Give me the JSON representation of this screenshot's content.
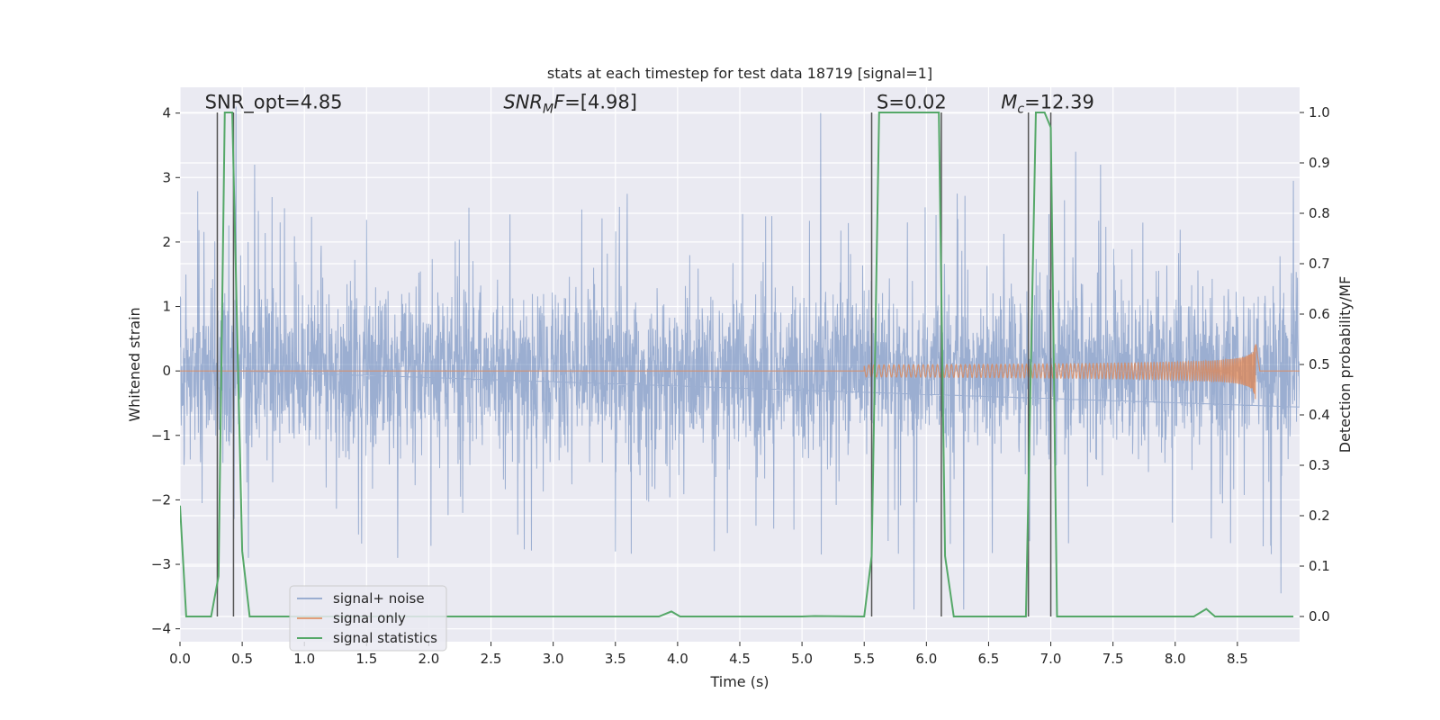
{
  "chart_data": {
    "type": "line",
    "title": "stats at each timestep for test data 18719 [signal=1]",
    "xlabel": "Time (s)",
    "ylabel": "Whitened strain",
    "ylabel_right": "Detection probability/MF",
    "xlim": [
      0,
      9.0
    ],
    "ylim": [
      -4.2,
      4.4
    ],
    "ylim_right": [
      -0.05,
      1.05
    ],
    "xticks": [
      0.0,
      0.5,
      1.0,
      1.5,
      2.0,
      2.5,
      3.0,
      3.5,
      4.0,
      4.5,
      5.0,
      5.5,
      6.0,
      6.5,
      7.0,
      7.5,
      8.0,
      8.5
    ],
    "xtick_labels": [
      "0.0",
      "0.5",
      "1.0",
      "1.5",
      "2.0",
      "2.5",
      "3.0",
      "3.5",
      "4.0",
      "4.5",
      "5.0",
      "5.5",
      "6.0",
      "6.5",
      "7.0",
      "7.5",
      "8.0",
      "8.5"
    ],
    "yticks": [
      -4,
      -3,
      -2,
      -1,
      0,
      1,
      2,
      3,
      4
    ],
    "ytick_labels": [
      "−4",
      "−3",
      "−2",
      "−1",
      "0",
      "1",
      "2",
      "3",
      "4"
    ],
    "yticks_right": [
      0.0,
      0.1,
      0.2,
      0.3,
      0.4,
      0.5,
      0.6,
      0.7,
      0.8,
      0.9,
      1.0
    ],
    "ytick_labels_right": [
      "0.0",
      "0.1",
      "0.2",
      "0.3",
      "0.4",
      "0.5",
      "0.6",
      "0.7",
      "0.8",
      "0.9",
      "1.0"
    ],
    "grid": true,
    "legend_placement": "lower-left",
    "colors": {
      "background": "#eaeaf2",
      "grid": "#ffffff",
      "noise": "#4c72b0",
      "signal": "#dd8452",
      "stats": "#55a868",
      "markers": "#555555"
    },
    "annotations": [
      {
        "text": "SNR_opt=4.85",
        "x": 0.2,
        "y": 4.1
      },
      {
        "text": "SNR",
        "sub": "M",
        "rest": "F=[4.98]",
        "italic": true,
        "x": 2.6,
        "y": 4.1
      },
      {
        "text": "S=0.02",
        "x": 5.6,
        "y": 4.1
      },
      {
        "text": "M",
        "sub": "c",
        "rest": "=12.39",
        "italic": true,
        "x": 6.6,
        "y": 4.1
      }
    ],
    "markers_x": [
      0.3,
      0.43,
      5.56,
      6.12,
      6.82,
      7.0
    ],
    "series": [
      {
        "name": "signal+ noise",
        "kind": "noise",
        "x_range": [
          0,
          9.0
        ],
        "core_amplitude": 0.95,
        "typical_peak": 1.9,
        "extremes": [
          {
            "x": 0.45,
            "y": 4.1
          },
          {
            "x": 0.6,
            "y": 3.2
          },
          {
            "x": 0.55,
            "y": -2.9
          },
          {
            "x": 1.75,
            "y": -2.9
          },
          {
            "x": 3.5,
            "y": -2.8
          },
          {
            "x": 5.15,
            "y": 4.0
          },
          {
            "x": 5.9,
            "y": -3.7
          },
          {
            "x": 6.3,
            "y": -3.7
          },
          {
            "x": 7.2,
            "y": 3.4
          },
          {
            "x": 7.4,
            "y": 3.2
          },
          {
            "x": 8.85,
            "y": -3.45
          },
          {
            "x": 8.95,
            "y": 2.95
          }
        ]
      },
      {
        "name": "signal only",
        "kind": "chirp",
        "start": 5.5,
        "merger": 8.65,
        "peak_amplitude": 0.55
      },
      {
        "name": "signal statistics",
        "kind": "line",
        "axis": "right",
        "points": [
          [
            0.0,
            0.22
          ],
          [
            0.05,
            0.0
          ],
          [
            0.25,
            0.0
          ],
          [
            0.31,
            0.08
          ],
          [
            0.36,
            1.0
          ],
          [
            0.42,
            1.0
          ],
          [
            0.5,
            0.13
          ],
          [
            0.56,
            0.0
          ],
          [
            3.85,
            0.0
          ],
          [
            3.95,
            0.01
          ],
          [
            4.02,
            0.0
          ],
          [
            5.0,
            0.0
          ],
          [
            5.1,
            0.001
          ],
          [
            5.5,
            0.0
          ],
          [
            5.56,
            0.12
          ],
          [
            5.62,
            1.0
          ],
          [
            6.1,
            1.0
          ],
          [
            6.15,
            0.12
          ],
          [
            6.22,
            0.0
          ],
          [
            6.8,
            0.0
          ],
          [
            6.88,
            1.0
          ],
          [
            6.95,
            1.0
          ],
          [
            7.0,
            0.97
          ],
          [
            7.05,
            0.0
          ],
          [
            8.15,
            0.0
          ],
          [
            8.25,
            0.015
          ],
          [
            8.32,
            0.0
          ],
          [
            8.95,
            0.0
          ]
        ]
      }
    ]
  }
}
